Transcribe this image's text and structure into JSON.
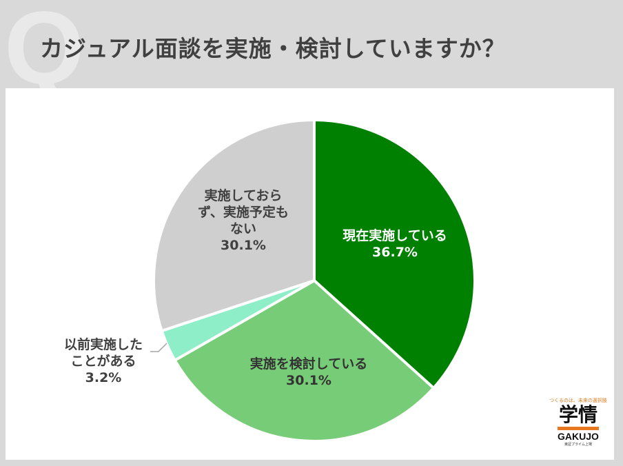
{
  "page": {
    "title": "カジュアル面談を実施・検討していますか？",
    "watermark_letter": "Q"
  },
  "chart_data": {
    "type": "pie",
    "title": "カジュアル面談を実施・検討していますか？",
    "slices": [
      {
        "label": "現在実施している",
        "value": 36.7,
        "value_label": "36.7%",
        "color": "#008000",
        "text_color": "#ffffff"
      },
      {
        "label": "実施を検討している",
        "value": 30.1,
        "value_label": "30.1%",
        "color": "#77cc77",
        "text_color": "#333333"
      },
      {
        "label": "以前実施したことがある",
        "value": 3.2,
        "value_label": "3.2%",
        "color": "#8eeec8",
        "text_color": "#404040"
      },
      {
        "label": "実施しておらず、実施予定もない",
        "value": 30.1,
        "value_label": "30.1%",
        "color": "#d0cfd0",
        "text_color": "#404040"
      }
    ],
    "label_lines": {
      "0": [
        "現在実施している",
        "36.7%"
      ],
      "1": [
        "実施を検討している",
        "30.1%"
      ],
      "2": [
        "以前実施した",
        "ことがある",
        "3.2%"
      ],
      "3": [
        "実施しておら",
        "ず、実施予定も",
        "ない",
        "30.1%"
      ]
    }
  },
  "logo": {
    "tagline": "つくるのは、未来の選択肢",
    "mark": "学情",
    "wordmark": "GAKUJO",
    "sub": "東証プライム上場"
  }
}
